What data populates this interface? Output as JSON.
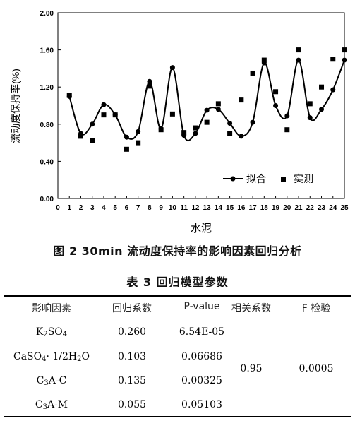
{
  "figure": {
    "caption": "图 2   30min 流动度保持率的影响因素回归分析"
  },
  "chart_data": {
    "type": "line",
    "ylabel": "流动度保持率(%)",
    "xlabel": "水泥",
    "xlim": [
      0,
      25
    ],
    "ylim": [
      0,
      2.0
    ],
    "xticks": [
      "0",
      "1",
      "2",
      "3",
      "4",
      "5",
      "6",
      "7",
      "8",
      "9",
      "10",
      "11",
      "12",
      "13",
      "14",
      "15",
      "16",
      "17",
      "18",
      "19",
      "20",
      "21",
      "22",
      "23",
      "24",
      "25"
    ],
    "yticks": [
      "0.00",
      "0.40",
      "0.80",
      "1.20",
      "1.60",
      "2.00"
    ],
    "x": [
      1,
      2,
      3,
      4,
      5,
      6,
      7,
      8,
      9,
      10,
      11,
      12,
      13,
      14,
      15,
      16,
      17,
      18,
      19,
      20,
      21,
      22,
      23,
      24,
      25
    ],
    "series": [
      {
        "name": "拟合",
        "style": "line-marker",
        "color": "#000000",
        "values": [
          1.1,
          0.7,
          0.8,
          1.01,
          0.9,
          0.66,
          0.72,
          1.26,
          0.75,
          1.41,
          0.68,
          0.7,
          0.95,
          0.96,
          0.81,
          0.67,
          0.82,
          1.46,
          1.0,
          0.89,
          1.49,
          0.87,
          0.96,
          1.17,
          1.49
        ]
      },
      {
        "name": "实测",
        "style": "square",
        "color": "#000000",
        "values": [
          1.11,
          0.67,
          0.62,
          0.9,
          0.9,
          0.53,
          0.6,
          1.21,
          0.74,
          0.91,
          0.71,
          0.76,
          0.82,
          1.02,
          0.7,
          1.06,
          1.35,
          1.49,
          1.15,
          0.74,
          1.6,
          1.02,
          1.2,
          1.5,
          1.6
        ]
      }
    ],
    "legend": {
      "position": "bottom-right",
      "items": [
        "拟合",
        "实测"
      ]
    },
    "grid": false
  },
  "table": {
    "caption": "表 3   回归模型参数",
    "headers": [
      "影响因素",
      "回归系数",
      "P-value",
      "相关系数",
      "F 检验"
    ],
    "rows": [
      {
        "factor_main": "K",
        "factor_sub1": "2",
        "factor_mid": "SO",
        "factor_sub2": "4",
        "factor_tail": "",
        "coef": "0.260",
        "p": "6.54E-05"
      },
      {
        "factor_main": "CaSO",
        "factor_sub1": "4",
        "factor_mid": "· 1/2H",
        "factor_sub2": "2",
        "factor_tail": "O",
        "coef": "0.103",
        "p": "0.06686"
      },
      {
        "factor_main": "C",
        "factor_sub1": "3",
        "factor_mid": "A-C",
        "factor_sub2": "",
        "factor_tail": "",
        "coef": "0.135",
        "p": "0.00325"
      },
      {
        "factor_main": "C",
        "factor_sub1": "3",
        "factor_mid": "A-M",
        "factor_sub2": "",
        "factor_tail": "",
        "coef": "0.055",
        "p": "0.05103"
      }
    ],
    "corr": "0.95",
    "ftest": "0.0005"
  }
}
